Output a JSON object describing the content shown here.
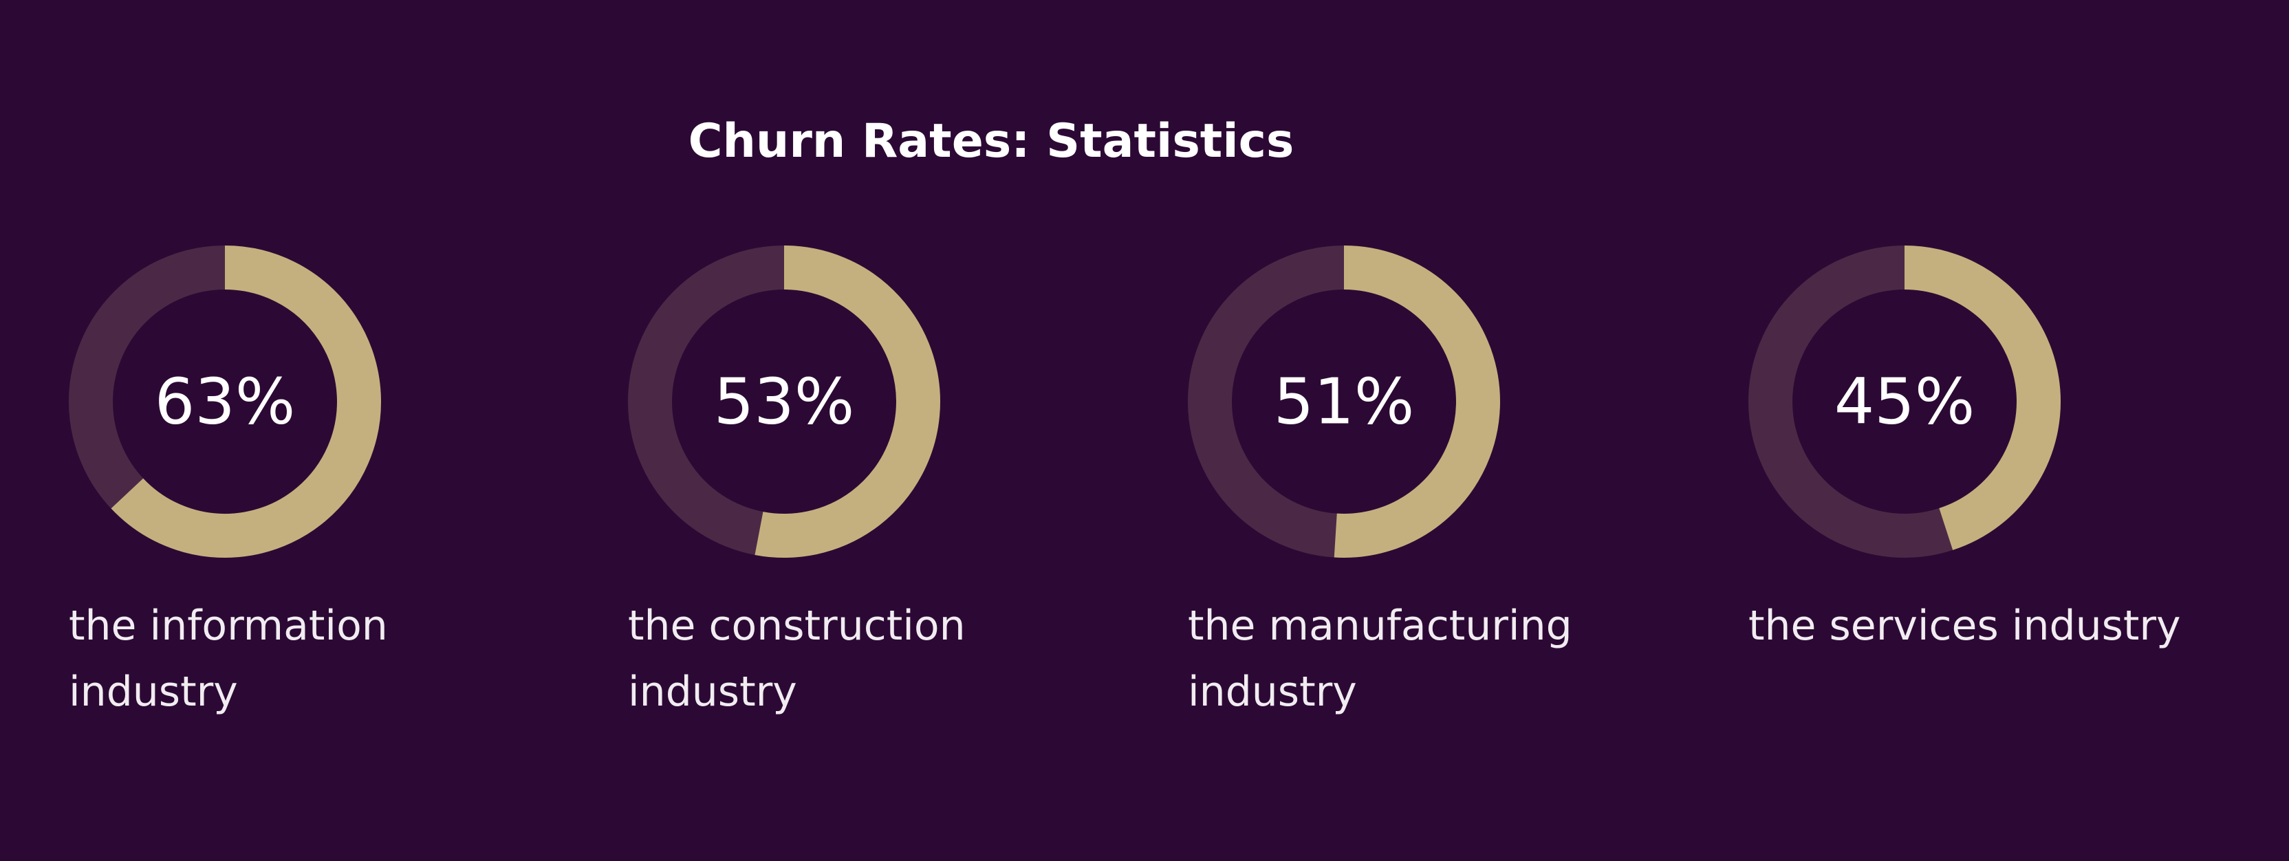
{
  "title": "Churn Rates: Statistics",
  "chart_data": [
    {
      "type": "donut",
      "label": "the information industry",
      "values": [
        63
      ],
      "value_labels": [
        "63%"
      ],
      "color": "#c4b07e",
      "track_color": "#4b2946"
    },
    {
      "type": "donut",
      "label": "the construction industry",
      "values": [
        53
      ],
      "value_labels": [
        "53%"
      ],
      "color": "#c4b07e",
      "track_color": "#4b2946"
    },
    {
      "type": "donut",
      "label": "the manufacturing industry",
      "values": [
        51
      ],
      "value_labels": [
        "51%"
      ],
      "color": "#c4b07e",
      "track_color": "#4b2946"
    },
    {
      "type": "donut",
      "label": "the services industry",
      "values": [
        45
      ],
      "value_labels": [
        "45%"
      ],
      "color": "#c4b07e",
      "track_color": "#4b2946"
    }
  ]
}
